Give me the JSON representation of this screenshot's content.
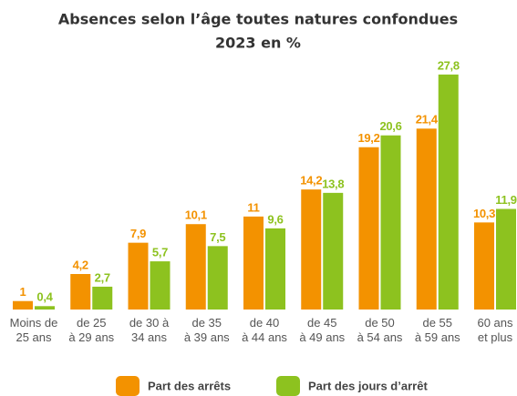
{
  "chart_data": {
    "type": "bar",
    "title": "Absences selon l’âge toutes natures confondues",
    "subtitle": "2023 en %",
    "categories": [
      "Moins de\n25 ans",
      "de 25\nà 29 ans",
      "de 30 à\n34 ans",
      "de 35\nà 39 ans",
      "de 40\nà 44 ans",
      "de 45\nà 49 ans",
      "de 50\nà 54 ans",
      "de 55\nà 59 ans",
      "60 ans\net plus"
    ],
    "series": [
      {
        "name": "Part des arrêts",
        "color": "#f39200",
        "values": [
          1,
          4.2,
          7.9,
          10.1,
          11,
          14.2,
          19.2,
          21.4,
          10.3
        ],
        "value_labels": [
          "1",
          "4,2",
          "7,9",
          "10,1",
          "11",
          "14,2",
          "19,2",
          "21,4",
          "10,3"
        ]
      },
      {
        "name": "Part des jours d’arrêt",
        "color": "#8dc21f",
        "values": [
          0.4,
          2.7,
          5.7,
          7.5,
          9.6,
          13.8,
          20.6,
          27.8,
          11.9
        ],
        "value_labels": [
          "0,4",
          "2,7",
          "5,7",
          "7,5",
          "9,6",
          "13,8",
          "20,6",
          "27,8",
          "11,9"
        ]
      }
    ],
    "ylim": [
      0,
      28
    ]
  }
}
